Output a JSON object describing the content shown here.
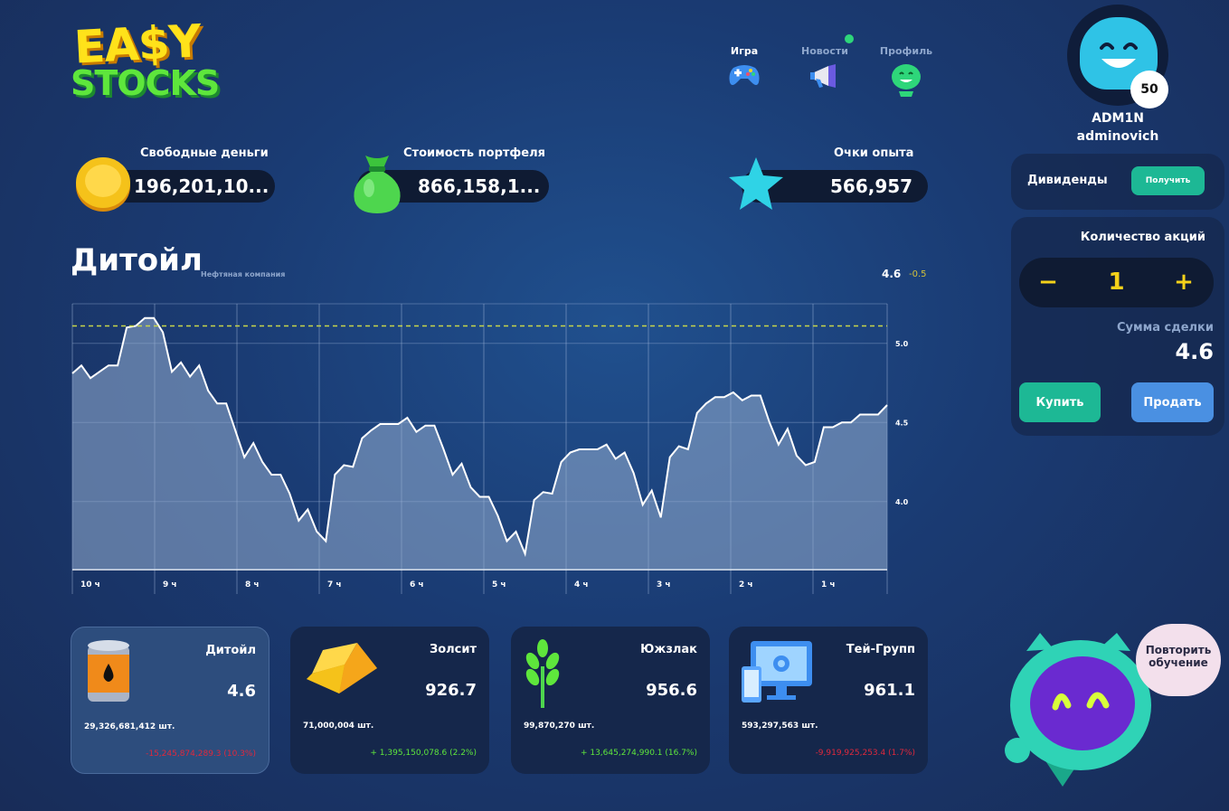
{
  "app": {
    "logo_line1": "EA$Y",
    "logo_line2": "STOCKS"
  },
  "nav": [
    {
      "label": "Игра",
      "icon": "gamepad-icon",
      "active": true
    },
    {
      "label": "Новости",
      "icon": "megaphone-icon",
      "active": false
    },
    {
      "label": "Профиль",
      "icon": "profile-icon",
      "active": false
    }
  ],
  "profile": {
    "level": "50",
    "name": "ADM1N",
    "handle": "adminovich"
  },
  "stats": {
    "free_money": {
      "label": "Свободные деньги",
      "value": "196,201,10..."
    },
    "portfolio": {
      "label": "Стоимость портфеля",
      "value": "866,158,1..."
    },
    "xp": {
      "label": "Очки опыта",
      "value": "566,957"
    }
  },
  "dividends": {
    "label": "Дивиденды",
    "button": "Получить"
  },
  "trade": {
    "qty_label": "Количество акций",
    "minus": "−",
    "plus": "+",
    "qty": "1",
    "sum_label": "Сумма сделки",
    "sum": "4.6",
    "buy": "Купить",
    "sell": "Продать"
  },
  "stock_header": {
    "name": "Дитойл",
    "subtitle": "Нефтяная компания",
    "price": "4.6",
    "change": "-0.5"
  },
  "chart_data": {
    "type": "area",
    "x_labels": [
      "10 ч",
      "9 ч",
      "8 ч",
      "7 ч",
      "6 ч",
      "5 ч",
      "4 ч",
      "3 ч",
      "2 ч",
      "1 ч"
    ],
    "y_ticks": [
      "5.0",
      "4.5",
      "4.0"
    ],
    "ylim": [
      3.57,
      5.25
    ],
    "reference_line": 5.11,
    "grid": true,
    "values": [
      4.81,
      4.86,
      4.78,
      4.82,
      4.86,
      4.86,
      5.1,
      5.11,
      5.16,
      5.16,
      5.07,
      4.82,
      4.88,
      4.79,
      4.86,
      4.7,
      4.62,
      4.62,
      4.45,
      4.28,
      4.37,
      4.25,
      4.17,
      4.17,
      4.05,
      3.88,
      3.95,
      3.81,
      3.75,
      4.17,
      4.23,
      4.22,
      4.4,
      4.45,
      4.49,
      4.49,
      4.49,
      4.53,
      4.44,
      4.48,
      4.48,
      4.33,
      4.17,
      4.24,
      4.09,
      4.03,
      4.03,
      3.91,
      3.75,
      3.81,
      3.67,
      4.01,
      4.06,
      4.05,
      4.25,
      4.31,
      4.33,
      4.33,
      4.33,
      4.36,
      4.27,
      4.31,
      4.18,
      3.98,
      4.07,
      3.9,
      4.28,
      4.35,
      4.33,
      4.56,
      4.62,
      4.66,
      4.66,
      4.69,
      4.64,
      4.67,
      4.67,
      4.5,
      4.36,
      4.46,
      4.29,
      4.23,
      4.25,
      4.47,
      4.47,
      4.5,
      4.5,
      4.55,
      4.55,
      4.55,
      4.61
    ]
  },
  "stocks": [
    {
      "name": "Дитойл",
      "price": "4.6",
      "shares": "29,326,681,412 шт.",
      "change": "-15,245,874,289.3 (10.3%)",
      "dir": "down",
      "icon": "oil-barrel-icon",
      "active": true
    },
    {
      "name": "Золсит",
      "price": "926.7",
      "shares": "71,000,004 шт.",
      "change": "+ 1,395,150,078.6 (2.2%)",
      "dir": "up",
      "icon": "gold-bar-icon",
      "active": false
    },
    {
      "name": "Южзлак",
      "price": "956.6",
      "shares": "99,870,270 шт.",
      "change": "+ 13,645,274,990.1 (16.7%)",
      "dir": "up",
      "icon": "wheat-icon",
      "active": false
    },
    {
      "name": "Тей-Групп",
      "price": "961.1",
      "shares": "593,297,563 шт.",
      "change": "-9,919,925,253.4 (1.7%)",
      "dir": "down",
      "icon": "computer-icon",
      "active": false
    }
  ],
  "mascot": {
    "bubble": "Повторить обучение"
  },
  "colors": {
    "accent_green": "#1db895",
    "accent_blue": "#4a90e2",
    "gold": "#f5d21a"
  }
}
